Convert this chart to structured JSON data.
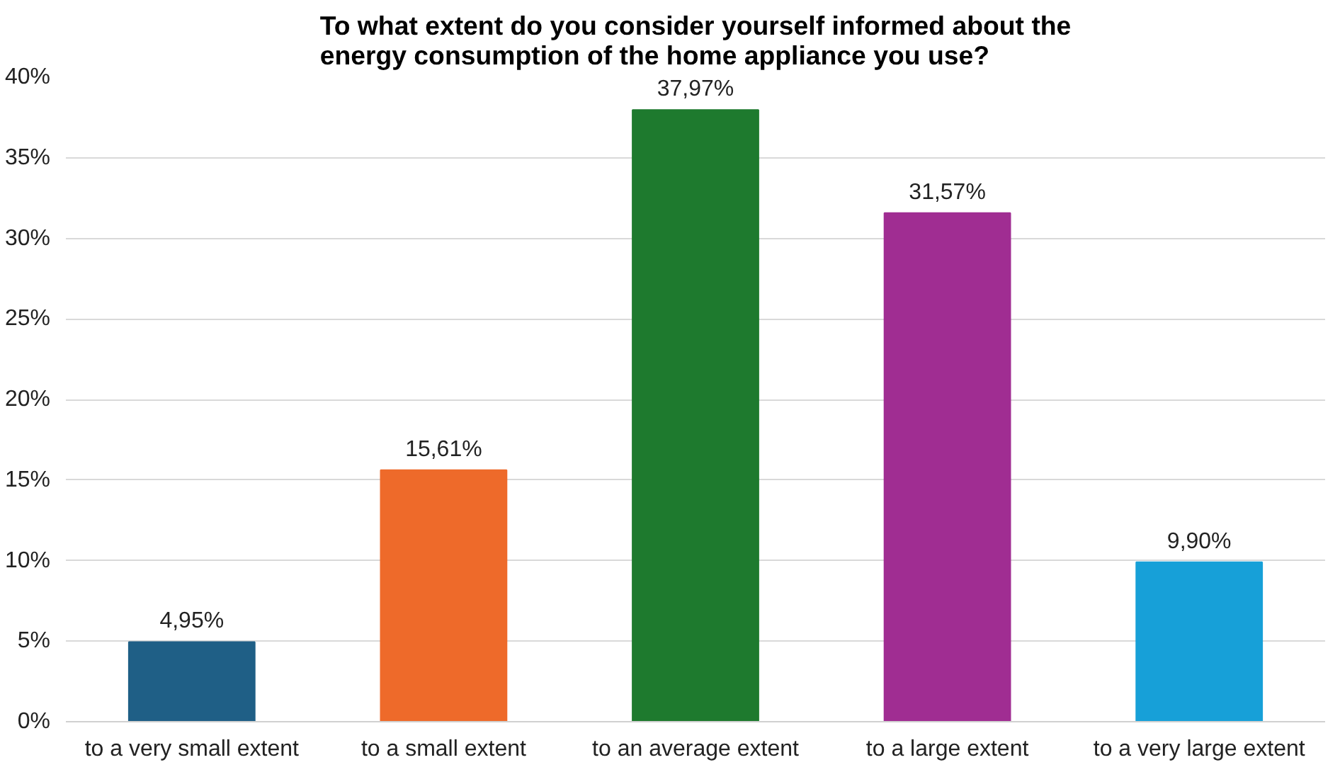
{
  "chart_data": {
    "type": "bar",
    "title": "To what extent do you consider yourself informed about the\nenergy consumption of the home appliance you use?",
    "categories": [
      "to a very small extent",
      "to a small extent",
      "to an average extent",
      "to a large extent",
      "to a very large extent"
    ],
    "values": [
      4.95,
      15.61,
      37.97,
      31.57,
      9.9
    ],
    "colors": [
      "#1f5f86",
      "#ee6a2a",
      "#1e7a2e",
      "#a02d92",
      "#17a0d8"
    ],
    "value_labels": [
      "4,95%",
      "15,61%",
      "37,97%",
      "31,57%",
      "9,90%"
    ],
    "ylim": [
      0,
      40
    ],
    "yticks": [
      {
        "value": 0,
        "label": "0%"
      },
      {
        "value": 5,
        "label": "5%"
      },
      {
        "value": 10,
        "label": "10%"
      },
      {
        "value": 15,
        "label": "15%"
      },
      {
        "value": 20,
        "label": "20%"
      },
      {
        "value": 25,
        "label": "25%"
      },
      {
        "value": 30,
        "label": "30%"
      },
      {
        "value": 35,
        "label": "35%"
      },
      {
        "value": 40,
        "label": "40%"
      }
    ],
    "grid": "y"
  }
}
